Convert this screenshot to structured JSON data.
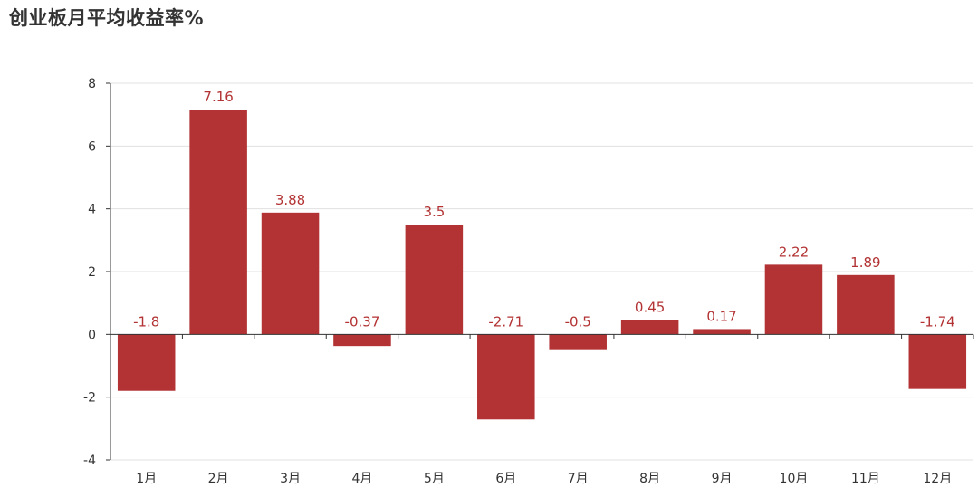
{
  "chart_data": {
    "type": "bar",
    "title": "创业板月平均收益率%",
    "xlabel": "",
    "ylabel": "",
    "categories": [
      "1月",
      "2月",
      "3月",
      "4月",
      "5月",
      "6月",
      "7月",
      "8月",
      "9月",
      "10月",
      "11月",
      "12月"
    ],
    "values": [
      -1.8,
      7.16,
      3.88,
      -0.37,
      3.5,
      -2.71,
      -0.5,
      0.45,
      0.17,
      2.22,
      1.89,
      -1.74
    ],
    "ylim": [
      -4,
      8
    ],
    "yticks": [
      -4,
      -2,
      0,
      2,
      4,
      6,
      8
    ],
    "grid": true,
    "bar_color": "#b33334",
    "label_color": "#b33334"
  }
}
